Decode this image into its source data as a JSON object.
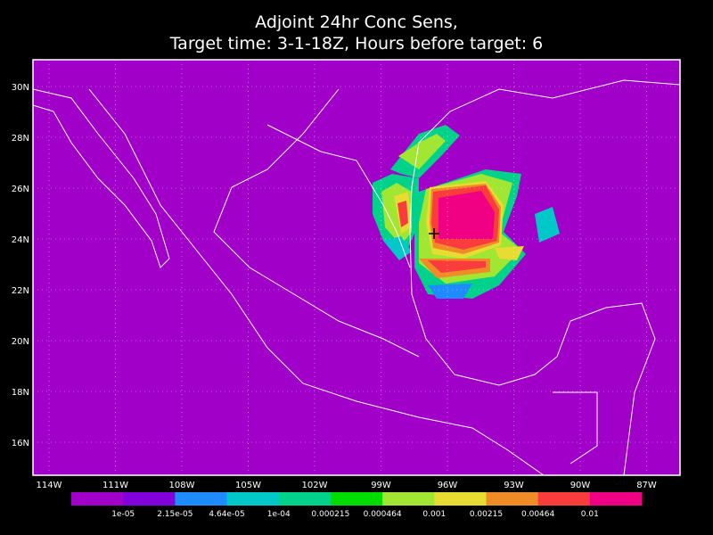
{
  "title_lines": [
    "Adjoint 24hr Conc Sens,",
    "Target time: 3-1-18Z, Hours before target: 6"
  ],
  "lat_labels": [
    "30N",
    "28N",
    "26N",
    "24N",
    "22N",
    "20N",
    "18N",
    "16N"
  ],
  "lon_labels": [
    "114W",
    "111W",
    "108W",
    "105W",
    "102W",
    "99W",
    "96W",
    "93W",
    "90W",
    "87W"
  ],
  "colorbar": {
    "colors": [
      "#a000c8",
      "#8200dc",
      "#1e8cff",
      "#00c8c8",
      "#00d28c",
      "#00dc00",
      "#a0e632",
      "#e6dc32",
      "#f08c28",
      "#fa3c3c",
      "#f00082"
    ],
    "labels": [
      "1e-05",
      "2.15e-05",
      "4.64e-05",
      "1e-04",
      "0.000215",
      "0.000464",
      "0.001",
      "0.00215",
      "0.00464",
      "0.01"
    ]
  }
}
